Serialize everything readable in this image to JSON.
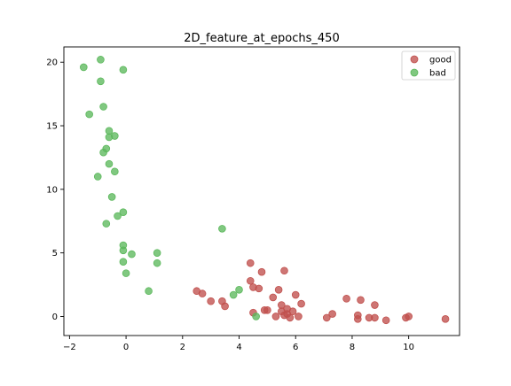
{
  "chart_data": {
    "type": "scatter",
    "title": "2D_feature_at_epochs_450",
    "xlabel": "",
    "ylabel": "",
    "xlim": [
      -2.2,
      11.8
    ],
    "ylim": [
      -1.5,
      21.2
    ],
    "xticks": [
      -2,
      0,
      2,
      4,
      6,
      8,
      10
    ],
    "yticks": [
      0,
      5,
      10,
      15,
      20
    ],
    "xtick_labels": [
      "−2",
      "0",
      "2",
      "4",
      "6",
      "8",
      "10"
    ],
    "ytick_labels": [
      "0",
      "5",
      "10",
      "15",
      "20"
    ],
    "grid": false,
    "legend": "top-right",
    "series": [
      {
        "name": "good",
        "color": "#c0504d",
        "points": [
          [
            2.5,
            2.0
          ],
          [
            2.7,
            1.8
          ],
          [
            3.0,
            1.2
          ],
          [
            3.4,
            1.2
          ],
          [
            3.5,
            0.8
          ],
          [
            4.4,
            4.2
          ],
          [
            4.4,
            2.8
          ],
          [
            4.5,
            2.3
          ],
          [
            4.5,
            0.3
          ],
          [
            4.7,
            2.2
          ],
          [
            4.8,
            3.5
          ],
          [
            4.9,
            0.5
          ],
          [
            5.0,
            0.5
          ],
          [
            5.2,
            1.5
          ],
          [
            5.3,
            0.0
          ],
          [
            5.4,
            2.1
          ],
          [
            5.5,
            0.9
          ],
          [
            5.5,
            0.4
          ],
          [
            5.6,
            3.6
          ],
          [
            5.6,
            0.1
          ],
          [
            5.7,
            0.6
          ],
          [
            5.7,
            0.2
          ],
          [
            5.8,
            -0.1
          ],
          [
            5.9,
            0.4
          ],
          [
            6.0,
            1.7
          ],
          [
            6.1,
            0.0
          ],
          [
            6.2,
            1.0
          ],
          [
            7.1,
            -0.1
          ],
          [
            7.3,
            0.2
          ],
          [
            7.8,
            1.4
          ],
          [
            8.2,
            0.1
          ],
          [
            8.2,
            -0.2
          ],
          [
            8.3,
            1.3
          ],
          [
            8.6,
            -0.1
          ],
          [
            8.8,
            0.9
          ],
          [
            8.8,
            -0.1
          ],
          [
            9.2,
            -0.3
          ],
          [
            9.9,
            -0.1
          ],
          [
            10.0,
            0.0
          ],
          [
            11.3,
            -0.2
          ]
        ]
      },
      {
        "name": "bad",
        "color": "#5cb85c",
        "points": [
          [
            -1.5,
            19.6
          ],
          [
            -0.9,
            20.2
          ],
          [
            -0.1,
            19.4
          ],
          [
            -0.9,
            18.5
          ],
          [
            -0.8,
            16.5
          ],
          [
            -1.3,
            15.9
          ],
          [
            -0.6,
            14.6
          ],
          [
            -0.6,
            14.1
          ],
          [
            -0.4,
            14.2
          ],
          [
            -0.7,
            13.2
          ],
          [
            -0.8,
            12.9
          ],
          [
            -0.6,
            12.0
          ],
          [
            -0.4,
            11.4
          ],
          [
            -1.0,
            11.0
          ],
          [
            -0.5,
            9.4
          ],
          [
            -0.1,
            8.2
          ],
          [
            -0.3,
            7.9
          ],
          [
            -0.7,
            7.3
          ],
          [
            3.4,
            6.9
          ],
          [
            -0.1,
            5.6
          ],
          [
            -0.1,
            5.2
          ],
          [
            1.1,
            5.0
          ],
          [
            0.2,
            4.9
          ],
          [
            -0.1,
            4.3
          ],
          [
            1.1,
            4.2
          ],
          [
            0.0,
            3.4
          ],
          [
            0.8,
            2.0
          ],
          [
            4.0,
            2.1
          ],
          [
            3.8,
            1.7
          ],
          [
            4.6,
            0.0
          ]
        ]
      }
    ]
  }
}
